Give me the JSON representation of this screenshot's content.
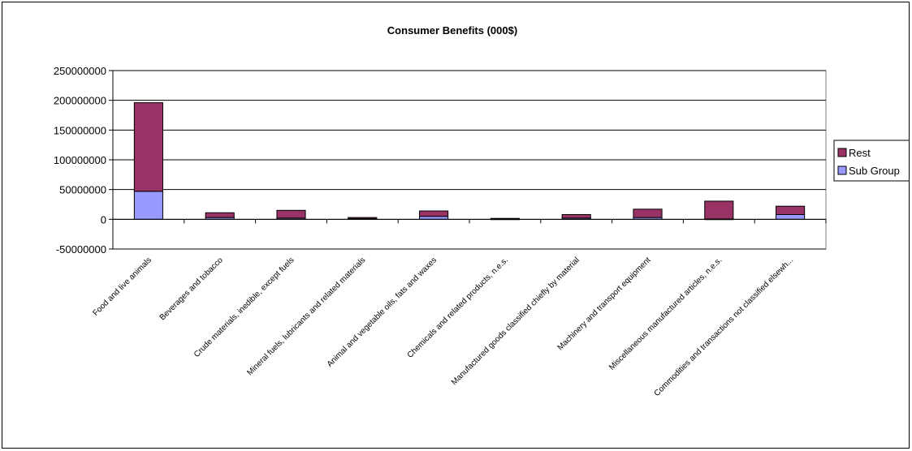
{
  "chart_data": {
    "type": "bar",
    "stacked": true,
    "title": "Consumer Benefits (000$)",
    "xlabel": "",
    "ylabel": "",
    "ylim": [
      -50000000,
      250000000
    ],
    "yticks": [
      250000000,
      200000000,
      150000000,
      100000000,
      50000000,
      0,
      -50000000
    ],
    "ytick_labels": [
      "250000000",
      "200000000",
      "150000000",
      "100000000",
      "50000000",
      "0",
      "-50000000"
    ],
    "grid": true,
    "legend_position": "right",
    "categories": [
      "Food and live animals",
      "Beverages and tobacco",
      "Crude materials, inedible, except fuels",
      "Mineral fuels, lubricants and related materials",
      "Animal and vegetable oils, fats and waxes",
      "Chemicals and related products, n.e.s.",
      "Manufactured goods classified chiefly by material",
      "Machinery and transport equipment",
      "Miscellaneous manufactured articles, n.e.s.",
      "Commodities and transactions not classified elsewh..."
    ],
    "series": [
      {
        "name": "Sub Group",
        "color": "#9999ff",
        "values": [
          47000000,
          3000000,
          2000000,
          1000000,
          5000000,
          500000,
          2000000,
          3000000,
          500000,
          8000000
        ]
      },
      {
        "name": "Rest",
        "color": "#993366",
        "values": [
          149000000,
          8000000,
          13000000,
          2000000,
          9000000,
          1000000,
          6000000,
          14000000,
          30000000,
          14000000
        ]
      }
    ],
    "legend": [
      {
        "name": "Rest",
        "color": "#993366"
      },
      {
        "name": "Sub Group",
        "color": "#9999ff"
      }
    ]
  }
}
